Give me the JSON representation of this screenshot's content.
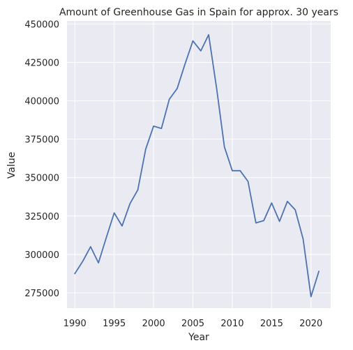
{
  "chart_data": {
    "type": "line",
    "title": "Amount of Greenhouse Gas in Spain for approx. 30 years",
    "xlabel": "Year",
    "ylabel": "Value",
    "xlim": [
      1989,
      2022.5
    ],
    "ylim": [
      265000,
      452000
    ],
    "x_ticks": [
      1990,
      1995,
      2000,
      2005,
      2010,
      2015,
      2020
    ],
    "y_ticks": [
      275000,
      300000,
      325000,
      350000,
      375000,
      400000,
      425000,
      450000
    ],
    "grid": true,
    "background": "#eaeaf2",
    "line_color": "#4c72b0",
    "series": [
      {
        "x": [
          1990,
          1991,
          1992,
          1993,
          1994,
          1995,
          1996,
          1997,
          1998,
          1999,
          2000,
          2001,
          2002,
          2003,
          2004,
          2005,
          2006,
          2007,
          2008,
          2009,
          2010,
          2011,
          2012,
          2013,
          2014,
          2015,
          2016,
          2017,
          2018,
          2019,
          2020,
          2021
        ],
        "values": [
          287500,
          295500,
          305000,
          294500,
          311000,
          327000,
          318500,
          333000,
          342000,
          368500,
          383500,
          382000,
          401000,
          408000,
          424000,
          439000,
          432500,
          443000,
          408500,
          370000,
          354500,
          354500,
          347500,
          320500,
          322000,
          333500,
          321500,
          334500,
          329000,
          310000,
          272500,
          289000
        ]
      }
    ]
  }
}
